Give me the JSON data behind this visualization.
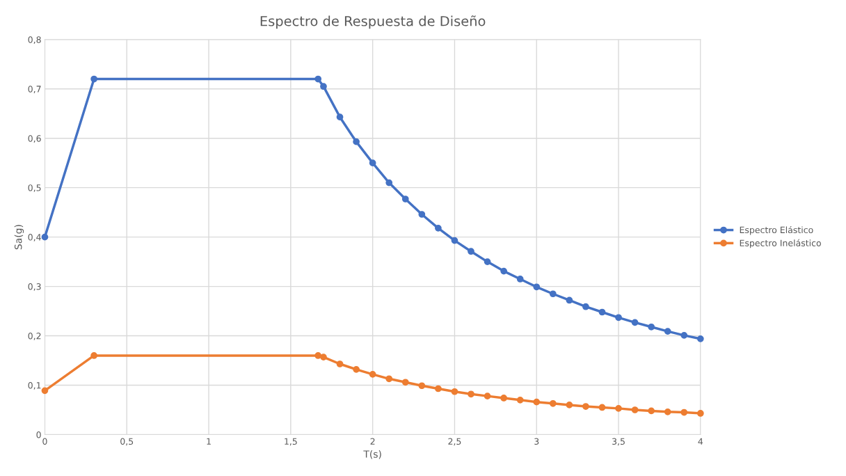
{
  "chart_data": {
    "type": "line",
    "title": "Espectro de Respuesta de Diseño",
    "xlabel": "T(s)",
    "ylabel": "Sa(g)",
    "x": [
      0,
      0.3,
      1.667,
      1.7,
      1.8,
      1.9,
      2.0,
      2.1,
      2.2,
      2.3,
      2.4,
      2.5,
      2.6,
      2.7,
      2.8,
      2.9,
      3.0,
      3.1,
      3.2,
      3.3,
      3.4,
      3.5,
      3.6,
      3.7,
      3.8,
      3.9,
      4.0
    ],
    "series": [
      {
        "name": "Espectro Elástico",
        "color": "#4472c4",
        "values": [
          0.4,
          0.72,
          0.72,
          0.705,
          0.643,
          0.593,
          0.55,
          0.51,
          0.477,
          0.446,
          0.418,
          0.393,
          0.371,
          0.35,
          0.331,
          0.315,
          0.299,
          0.285,
          0.272,
          0.259,
          0.248,
          0.237,
          0.227,
          0.218,
          0.209,
          0.201,
          0.194
        ]
      },
      {
        "name": "Espectro Inelástico",
        "color": "#ed7d31",
        "values": [
          0.089,
          0.16,
          0.16,
          0.157,
          0.143,
          0.132,
          0.122,
          0.113,
          0.106,
          0.099,
          0.093,
          0.087,
          0.082,
          0.078,
          0.074,
          0.07,
          0.066,
          0.063,
          0.06,
          0.057,
          0.055,
          0.053,
          0.05,
          0.048,
          0.046,
          0.045,
          0.043
        ]
      }
    ],
    "xlim": [
      0,
      4
    ],
    "xticks": [
      0,
      {
        "value": 0.5,
        "label": "0,5"
      },
      1,
      {
        "value": 1.5,
        "label": "1,5"
      },
      2,
      {
        "value": 2.5,
        "label": "2,5"
      },
      3,
      {
        "value": 3.5,
        "label": "3,5"
      },
      4
    ],
    "ylim": [
      0,
      0.8
    ],
    "yticks": [
      0,
      {
        "value": 0.1,
        "label": "0,1"
      },
      {
        "value": 0.2,
        "label": "0,2"
      },
      {
        "value": 0.3,
        "label": "0,3"
      },
      {
        "value": 0.4,
        "label": "0,4"
      },
      {
        "value": 0.5,
        "label": "0,5"
      },
      {
        "value": 0.6,
        "label": "0,6"
      },
      {
        "value": 0.7,
        "label": "0,7"
      },
      {
        "value": 0.8,
        "label": "0,8"
      }
    ],
    "grid": true,
    "legend": "right",
    "marker": "circle",
    "line_style": "solid"
  }
}
